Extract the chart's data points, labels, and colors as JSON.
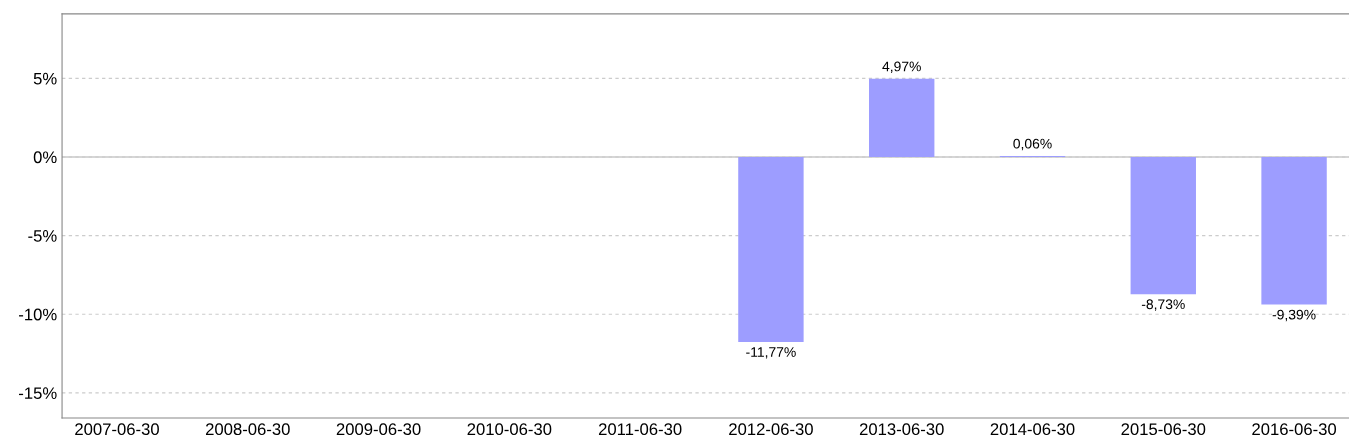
{
  "chart_data": {
    "type": "bar",
    "categories": [
      "2007-06-30",
      "2008-06-30",
      "2009-06-30",
      "2010-06-30",
      "2011-06-30",
      "2012-06-30",
      "2013-06-30",
      "2014-06-30",
      "2015-06-30",
      "2016-06-30"
    ],
    "values": [
      null,
      null,
      null,
      null,
      null,
      -11.77,
      4.97,
      0.06,
      -8.73,
      -9.39
    ],
    "value_labels": [
      null,
      null,
      null,
      null,
      null,
      "-11,77%",
      "4,97%",
      "0,06%",
      "-8,73%",
      "-9,39%"
    ],
    "color": "#9d9dff",
    "ylim": [
      -16.6,
      9.1
    ],
    "yticks": [
      {
        "value": -15,
        "label": "-15%"
      },
      {
        "value": -10,
        "label": "-10%"
      },
      {
        "value": -5,
        "label": "-5%"
      },
      {
        "value": 0,
        "label": "0%"
      },
      {
        "value": 5,
        "label": "5%"
      }
    ],
    "grid": "y",
    "ref_lines": [
      {
        "axis": "y",
        "value": 0,
        "color": "#c8c8c8",
        "line_style": "solid"
      }
    ],
    "legend": false
  }
}
